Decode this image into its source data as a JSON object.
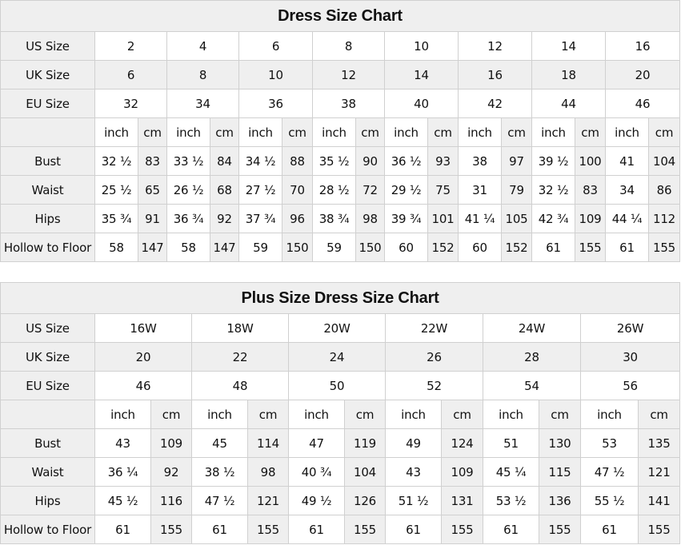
{
  "standard_chart": {
    "title": "Dress Size Chart",
    "rows": {
      "us": {
        "label": "US Size",
        "values": [
          "2",
          "4",
          "6",
          "8",
          "10",
          "12",
          "14",
          "16"
        ]
      },
      "uk": {
        "label": "UK Size",
        "values": [
          "6",
          "8",
          "10",
          "12",
          "14",
          "16",
          "18",
          "20"
        ]
      },
      "eu": {
        "label": "EU Size",
        "values": [
          "32",
          "34",
          "36",
          "38",
          "40",
          "42",
          "44",
          "46"
        ]
      }
    },
    "unit_labels": [
      "inch",
      "cm"
    ],
    "measurements": [
      {
        "label": "Bust",
        "values": [
          [
            "32 ½",
            "83"
          ],
          [
            "33 ½",
            "84"
          ],
          [
            "34 ½",
            "88"
          ],
          [
            "35 ½",
            "90"
          ],
          [
            "36 ½",
            "93"
          ],
          [
            "38",
            "97"
          ],
          [
            "39 ½",
            "100"
          ],
          [
            "41",
            "104"
          ]
        ]
      },
      {
        "label": "Waist",
        "values": [
          [
            "25 ½",
            "65"
          ],
          [
            "26 ½",
            "68"
          ],
          [
            "27 ½",
            "70"
          ],
          [
            "28 ½",
            "72"
          ],
          [
            "29 ½",
            "75"
          ],
          [
            "31",
            "79"
          ],
          [
            "32 ½",
            "83"
          ],
          [
            "34",
            "86"
          ]
        ]
      },
      {
        "label": "Hips",
        "values": [
          [
            "35 ¾",
            "91"
          ],
          [
            "36 ¾",
            "92"
          ],
          [
            "37 ¾",
            "96"
          ],
          [
            "38 ¾",
            "98"
          ],
          [
            "39 ¾",
            "101"
          ],
          [
            "41 ¼",
            "105"
          ],
          [
            "42 ¾",
            "109"
          ],
          [
            "44 ¼",
            "112"
          ]
        ]
      },
      {
        "label": "Hollow to Floor",
        "values": [
          [
            "58",
            "147"
          ],
          [
            "58",
            "147"
          ],
          [
            "59",
            "150"
          ],
          [
            "59",
            "150"
          ],
          [
            "60",
            "152"
          ],
          [
            "60",
            "152"
          ],
          [
            "61",
            "155"
          ],
          [
            "61",
            "155"
          ]
        ]
      }
    ]
  },
  "plus_chart": {
    "title": "Plus Size Dress Size Chart",
    "rows": {
      "us": {
        "label": "US Size",
        "values": [
          "16W",
          "18W",
          "20W",
          "22W",
          "24W",
          "26W"
        ]
      },
      "uk": {
        "label": "UK Size",
        "values": [
          "20",
          "22",
          "24",
          "26",
          "28",
          "30"
        ]
      },
      "eu": {
        "label": "EU Size",
        "values": [
          "46",
          "48",
          "50",
          "52",
          "54",
          "56"
        ]
      }
    },
    "unit_labels": [
      "inch",
      "cm"
    ],
    "measurements": [
      {
        "label": "Bust",
        "values": [
          [
            "43",
            "109"
          ],
          [
            "45",
            "114"
          ],
          [
            "47",
            "119"
          ],
          [
            "49",
            "124"
          ],
          [
            "51",
            "130"
          ],
          [
            "53",
            "135"
          ]
        ]
      },
      {
        "label": "Waist",
        "values": [
          [
            "36 ¼",
            "92"
          ],
          [
            "38 ½",
            "98"
          ],
          [
            "40 ¾",
            "104"
          ],
          [
            "43",
            "109"
          ],
          [
            "45 ¼",
            "115"
          ],
          [
            "47 ½",
            "121"
          ]
        ]
      },
      {
        "label": "Hips",
        "values": [
          [
            "45 ½",
            "116"
          ],
          [
            "47 ½",
            "121"
          ],
          [
            "49 ½",
            "126"
          ],
          [
            "51 ½",
            "131"
          ],
          [
            "53 ½",
            "136"
          ],
          [
            "55 ½",
            "141"
          ]
        ]
      },
      {
        "label": "Hollow to Floor",
        "values": [
          [
            "61",
            "155"
          ],
          [
            "61",
            "155"
          ],
          [
            "61",
            "155"
          ],
          [
            "61",
            "155"
          ],
          [
            "61",
            "155"
          ],
          [
            "61",
            "155"
          ]
        ]
      }
    ]
  },
  "colors": {
    "header_bg": "#efefef",
    "border": "#d0d0d0"
  }
}
